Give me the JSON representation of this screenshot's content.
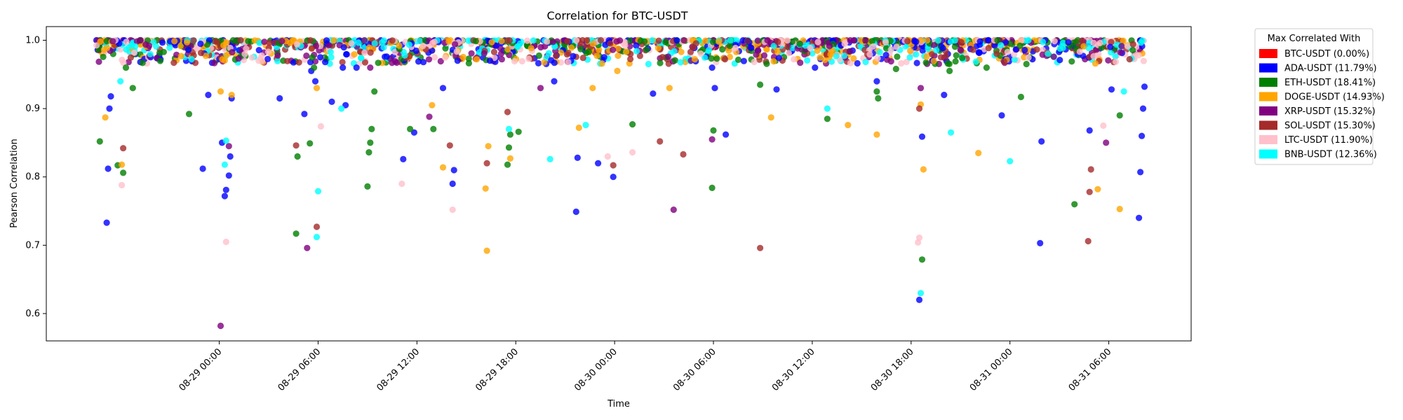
{
  "chart_data": {
    "type": "scatter",
    "title": "Correlation for BTC-USDT",
    "xlabel": "Time",
    "ylabel": "Pearson Correlation",
    "xlim": [
      "2024-08-28T13:30",
      "2024-08-31T11:00"
    ],
    "ylim": [
      0.56,
      1.02
    ],
    "yticks": [
      0.6,
      0.7,
      0.8,
      0.9,
      1.0
    ],
    "ytick_labels": [
      "0.6",
      "0.7",
      "0.8",
      "0.9",
      "1.0"
    ],
    "xticks": [
      "2024-08-29T00:00",
      "2024-08-29T06:00",
      "2024-08-29T12:00",
      "2024-08-29T18:00",
      "2024-08-30T00:00",
      "2024-08-30T06:00",
      "2024-08-30T12:00",
      "2024-08-30T18:00",
      "2024-08-31T00:00",
      "2024-08-31T06:00"
    ],
    "xtick_labels": [
      "08-29 00:00",
      "08-29 06:00",
      "08-29 12:00",
      "08-29 18:00",
      "08-30 00:00",
      "08-30 06:00",
      "08-30 12:00",
      "08-30 18:00",
      "08-31 00:00",
      "08-31 06:00"
    ],
    "grid": false,
    "legend": {
      "title": "Max Correlated With",
      "placement": "outside-upper-right",
      "entries": [
        {
          "label": "BTC-USDT (0.00%)",
          "color": "#ff0000"
        },
        {
          "label": "ADA-USDT (11.79%)",
          "color": "#0000ff"
        },
        {
          "label": "ETH-USDT (18.41%)",
          "color": "#008000"
        },
        {
          "label": "DOGE-USDT (14.93%)",
          "color": "#ffa500"
        },
        {
          "label": "XRP-USDT (15.32%)",
          "color": "#800080"
        },
        {
          "label": "SOL-USDT (15.30%)",
          "color": "#a52a2a"
        },
        {
          "label": "LTC-USDT (11.90%)",
          "color": "#ffc0cb"
        },
        {
          "label": "BNB-USDT (12.36%)",
          "color": "#00ffff"
        }
      ]
    },
    "series": [
      {
        "name": "ADA-USDT",
        "color": "#0000ff",
        "points": [
          {
            "x": "2024-08-28T17:10",
            "y": 0.733
          },
          {
            "x": "2024-08-28T17:15",
            "y": 0.812
          },
          {
            "x": "2024-08-28T17:20",
            "y": 0.9
          },
          {
            "x": "2024-08-28T17:25",
            "y": 0.918
          },
          {
            "x": "2024-08-28T23:00",
            "y": 0.812
          },
          {
            "x": "2024-08-28T23:20",
            "y": 0.92
          },
          {
            "x": "2024-08-29T00:10",
            "y": 0.85
          },
          {
            "x": "2024-08-29T00:20",
            "y": 0.772
          },
          {
            "x": "2024-08-29T00:25",
            "y": 0.781
          },
          {
            "x": "2024-08-29T00:35",
            "y": 0.802
          },
          {
            "x": "2024-08-29T00:40",
            "y": 0.83
          },
          {
            "x": "2024-08-29T00:45",
            "y": 0.915
          },
          {
            "x": "2024-08-29T03:40",
            "y": 0.915
          },
          {
            "x": "2024-08-29T05:10",
            "y": 0.892
          },
          {
            "x": "2024-08-29T05:35",
            "y": 0.955
          },
          {
            "x": "2024-08-29T05:50",
            "y": 0.94
          },
          {
            "x": "2024-08-29T06:50",
            "y": 0.91
          },
          {
            "x": "2024-08-29T07:30",
            "y": 0.96
          },
          {
            "x": "2024-08-29T07:40",
            "y": 0.905
          },
          {
            "x": "2024-08-29T08:20",
            "y": 0.96
          },
          {
            "x": "2024-08-29T11:10",
            "y": 0.826
          },
          {
            "x": "2024-08-29T11:50",
            "y": 0.865
          },
          {
            "x": "2024-08-29T13:35",
            "y": 0.93
          },
          {
            "x": "2024-08-29T14:10",
            "y": 0.79
          },
          {
            "x": "2024-08-29T14:15",
            "y": 0.81
          },
          {
            "x": "2024-08-29T20:20",
            "y": 0.94
          },
          {
            "x": "2024-08-29T21:40",
            "y": 0.749
          },
          {
            "x": "2024-08-29T21:45",
            "y": 0.828
          },
          {
            "x": "2024-08-29T23:00",
            "y": 0.82
          },
          {
            "x": "2024-08-29T23:55",
            "y": 0.8
          },
          {
            "x": "2024-08-30T02:20",
            "y": 0.922
          },
          {
            "x": "2024-08-30T05:55",
            "y": 0.96
          },
          {
            "x": "2024-08-30T06:05",
            "y": 0.93
          },
          {
            "x": "2024-08-30T06:45",
            "y": 0.862
          },
          {
            "x": "2024-08-30T09:50",
            "y": 0.928
          },
          {
            "x": "2024-08-30T12:10",
            "y": 0.96
          },
          {
            "x": "2024-08-30T15:55",
            "y": 0.94
          },
          {
            "x": "2024-08-30T18:30",
            "y": 0.62
          },
          {
            "x": "2024-08-30T18:40",
            "y": 0.859
          },
          {
            "x": "2024-08-30T20:00",
            "y": 0.92
          },
          {
            "x": "2024-08-30T23:30",
            "y": 0.89
          },
          {
            "x": "2024-08-31T01:50",
            "y": 0.703
          },
          {
            "x": "2024-08-31T01:55",
            "y": 0.852
          },
          {
            "x": "2024-08-31T04:50",
            "y": 0.868
          },
          {
            "x": "2024-08-31T06:10",
            "y": 0.928
          },
          {
            "x": "2024-08-31T07:50",
            "y": 0.74
          },
          {
            "x": "2024-08-31T07:55",
            "y": 0.807
          },
          {
            "x": "2024-08-31T08:00",
            "y": 0.86
          },
          {
            "x": "2024-08-31T08:05",
            "y": 0.9
          },
          {
            "x": "2024-08-31T08:10",
            "y": 0.932
          }
        ]
      },
      {
        "name": "ETH-USDT",
        "color": "#008000",
        "points": [
          {
            "x": "2024-08-28T16:45",
            "y": 0.852
          },
          {
            "x": "2024-08-28T17:50",
            "y": 0.817
          },
          {
            "x": "2024-08-28T18:10",
            "y": 0.806
          },
          {
            "x": "2024-08-28T18:20",
            "y": 0.96
          },
          {
            "x": "2024-08-28T18:45",
            "y": 0.93
          },
          {
            "x": "2024-08-28T22:10",
            "y": 0.892
          },
          {
            "x": "2024-08-29T04:40",
            "y": 0.717
          },
          {
            "x": "2024-08-29T04:45",
            "y": 0.83
          },
          {
            "x": "2024-08-29T05:30",
            "y": 0.849
          },
          {
            "x": "2024-08-29T05:45",
            "y": 0.96
          },
          {
            "x": "2024-08-29T09:00",
            "y": 0.786
          },
          {
            "x": "2024-08-29T09:05",
            "y": 0.836
          },
          {
            "x": "2024-08-29T09:10",
            "y": 0.85
          },
          {
            "x": "2024-08-29T09:15",
            "y": 0.87
          },
          {
            "x": "2024-08-29T09:25",
            "y": 0.925
          },
          {
            "x": "2024-08-29T11:35",
            "y": 0.87
          },
          {
            "x": "2024-08-29T13:00",
            "y": 0.87
          },
          {
            "x": "2024-08-29T17:30",
            "y": 0.818
          },
          {
            "x": "2024-08-29T17:35",
            "y": 0.843
          },
          {
            "x": "2024-08-29T17:40",
            "y": 0.862
          },
          {
            "x": "2024-08-29T18:10",
            "y": 0.866
          },
          {
            "x": "2024-08-30T01:05",
            "y": 0.877
          },
          {
            "x": "2024-08-30T05:55",
            "y": 0.784
          },
          {
            "x": "2024-08-30T06:00",
            "y": 0.868
          },
          {
            "x": "2024-08-30T08:50",
            "y": 0.935
          },
          {
            "x": "2024-08-30T12:55",
            "y": 0.885
          },
          {
            "x": "2024-08-30T15:55",
            "y": 0.925
          },
          {
            "x": "2024-08-30T16:00",
            "y": 0.915
          },
          {
            "x": "2024-08-30T17:05",
            "y": 0.958
          },
          {
            "x": "2024-08-30T18:40",
            "y": 0.679
          },
          {
            "x": "2024-08-30T20:20",
            "y": 0.955
          },
          {
            "x": "2024-08-30T22:35",
            "y": 0.96
          },
          {
            "x": "2024-08-31T00:40",
            "y": 0.917
          },
          {
            "x": "2024-08-31T03:55",
            "y": 0.76
          },
          {
            "x": "2024-08-31T06:40",
            "y": 0.89
          }
        ]
      },
      {
        "name": "DOGE-USDT",
        "color": "#ffa500",
        "points": [
          {
            "x": "2024-08-28T17:05",
            "y": 0.887
          },
          {
            "x": "2024-08-28T18:05",
            "y": 0.818
          },
          {
            "x": "2024-08-29T00:05",
            "y": 0.925
          },
          {
            "x": "2024-08-29T00:45",
            "y": 0.92
          },
          {
            "x": "2024-08-29T05:55",
            "y": 0.93
          },
          {
            "x": "2024-08-29T12:55",
            "y": 0.905
          },
          {
            "x": "2024-08-29T13:35",
            "y": 0.814
          },
          {
            "x": "2024-08-29T16:15",
            "y": 0.692
          },
          {
            "x": "2024-08-29T16:10",
            "y": 0.783
          },
          {
            "x": "2024-08-29T16:20",
            "y": 0.845
          },
          {
            "x": "2024-08-29T17:40",
            "y": 0.827
          },
          {
            "x": "2024-08-29T21:50",
            "y": 0.872
          },
          {
            "x": "2024-08-29T22:40",
            "y": 0.93
          },
          {
            "x": "2024-08-30T00:10",
            "y": 0.955
          },
          {
            "x": "2024-08-30T03:20",
            "y": 0.93
          },
          {
            "x": "2024-08-30T09:30",
            "y": 0.887
          },
          {
            "x": "2024-08-30T14:10",
            "y": 0.876
          },
          {
            "x": "2024-08-30T15:55",
            "y": 0.862
          },
          {
            "x": "2024-08-30T18:45",
            "y": 0.811
          },
          {
            "x": "2024-08-30T18:35",
            "y": 0.906
          },
          {
            "x": "2024-08-30T22:05",
            "y": 0.835
          },
          {
            "x": "2024-08-31T05:20",
            "y": 0.782
          },
          {
            "x": "2024-08-31T06:40",
            "y": 0.753
          }
        ]
      },
      {
        "name": "XRP-USDT",
        "color": "#800080",
        "points": [
          {
            "x": "2024-08-29T00:05",
            "y": 0.582
          },
          {
            "x": "2024-08-29T00:35",
            "y": 0.845
          },
          {
            "x": "2024-08-29T05:20",
            "y": 0.696
          },
          {
            "x": "2024-08-29T09:10",
            "y": 0.96
          },
          {
            "x": "2024-08-29T12:45",
            "y": 0.888
          },
          {
            "x": "2024-08-29T19:30",
            "y": 0.93
          },
          {
            "x": "2024-08-30T03:35",
            "y": 0.752
          },
          {
            "x": "2024-08-30T05:55",
            "y": 0.855
          },
          {
            "x": "2024-08-30T18:35",
            "y": 0.93
          },
          {
            "x": "2024-08-31T05:50",
            "y": 0.85
          }
        ]
      },
      {
        "name": "SOL-USDT",
        "color": "#a52a2a",
        "points": [
          {
            "x": "2024-08-28T18:10",
            "y": 0.842
          },
          {
            "x": "2024-08-29T04:40",
            "y": 0.846
          },
          {
            "x": "2024-08-29T05:55",
            "y": 0.727
          },
          {
            "x": "2024-08-29T14:00",
            "y": 0.846
          },
          {
            "x": "2024-08-29T16:15",
            "y": 0.82
          },
          {
            "x": "2024-08-29T17:30",
            "y": 0.895
          },
          {
            "x": "2024-08-29T23:55",
            "y": 0.817
          },
          {
            "x": "2024-08-30T02:45",
            "y": 0.852
          },
          {
            "x": "2024-08-30T04:10",
            "y": 0.833
          },
          {
            "x": "2024-08-30T08:50",
            "y": 0.696
          },
          {
            "x": "2024-08-30T18:30",
            "y": 0.9
          },
          {
            "x": "2024-08-31T04:45",
            "y": 0.706
          },
          {
            "x": "2024-08-31T04:50",
            "y": 0.778
          },
          {
            "x": "2024-08-31T04:55",
            "y": 0.811
          }
        ]
      },
      {
        "name": "LTC-USDT",
        "color": "#ffc0cb",
        "points": [
          {
            "x": "2024-08-28T18:05",
            "y": 0.788
          },
          {
            "x": "2024-08-29T00:25",
            "y": 0.705
          },
          {
            "x": "2024-08-29T06:10",
            "y": 0.874
          },
          {
            "x": "2024-08-29T11:05",
            "y": 0.79
          },
          {
            "x": "2024-08-29T14:10",
            "y": 0.752
          },
          {
            "x": "2024-08-29T23:35",
            "y": 0.83
          },
          {
            "x": "2024-08-30T01:05",
            "y": 0.836
          },
          {
            "x": "2024-08-30T18:25",
            "y": 0.704
          },
          {
            "x": "2024-08-30T18:30",
            "y": 0.711
          },
          {
            "x": "2024-08-31T05:40",
            "y": 0.875
          }
        ]
      },
      {
        "name": "BNB-USDT",
        "color": "#00ffff",
        "points": [
          {
            "x": "2024-08-28T18:00",
            "y": 0.94
          },
          {
            "x": "2024-08-29T00:20",
            "y": 0.818
          },
          {
            "x": "2024-08-29T00:25",
            "y": 0.853
          },
          {
            "x": "2024-08-29T05:55",
            "y": 0.712
          },
          {
            "x": "2024-08-29T06:00",
            "y": 0.779
          },
          {
            "x": "2024-08-29T07:25",
            "y": 0.9
          },
          {
            "x": "2024-08-29T17:35",
            "y": 0.87
          },
          {
            "x": "2024-08-29T20:05",
            "y": 0.826
          },
          {
            "x": "2024-08-29T22:15",
            "y": 0.876
          },
          {
            "x": "2024-08-30T12:55",
            "y": 0.9
          },
          {
            "x": "2024-08-30T18:35",
            "y": 0.63
          },
          {
            "x": "2024-08-30T20:25",
            "y": 0.865
          },
          {
            "x": "2024-08-31T00:00",
            "y": 0.823
          },
          {
            "x": "2024-08-31T06:55",
            "y": 0.925
          }
        ]
      }
    ],
    "dense_band": {
      "note": "many points per color clustered near the top",
      "x_start": "2024-08-28T16:30",
      "x_end": "2024-08-31T08:10",
      "y_range": [
        0.965,
        1.0
      ]
    }
  }
}
